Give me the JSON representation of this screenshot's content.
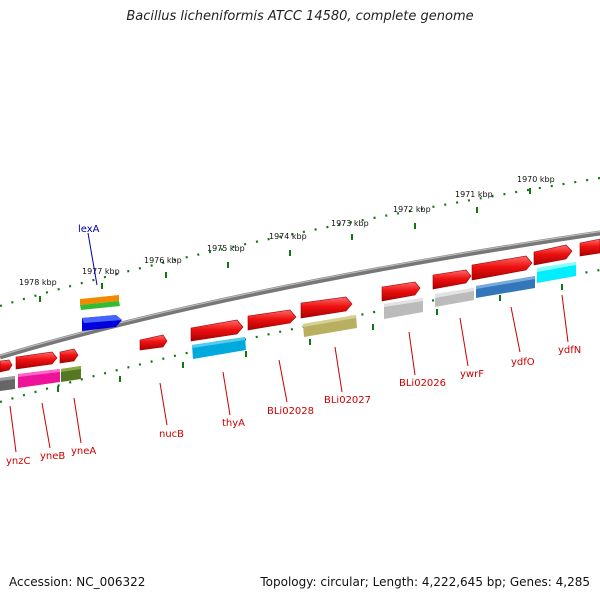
{
  "title": "Bacillus licheniformis ATCC 14580, complete genome",
  "footer": {
    "accession": "Accession: NC_006322",
    "summary": "Topology: circular; Length: 4,222,645 bp; Genes: 4,285"
  },
  "scale_labels": [
    "1970 kbp",
    "1971 kbp",
    "1972 kbp",
    "1973 kbp",
    "1974 kbp",
    "1975 kbp",
    "1976 kbp",
    "1977 kbp",
    "1978 kbp"
  ],
  "gene_labels": {
    "forward": [
      "lexA"
    ],
    "reverse": [
      "ynzC",
      "yneB",
      "yneA",
      "nucB",
      "thyA",
      "BLi02028",
      "BLi02027",
      "BLi02026",
      "ywrF",
      "ydfO",
      "ydfN"
    ]
  },
  "colors": {
    "gene_red": "#ee1111",
    "backbone": "#777777",
    "tick_green": "#117711",
    "label_red": "#cc0000",
    "label_blue": "#0000aa"
  }
}
